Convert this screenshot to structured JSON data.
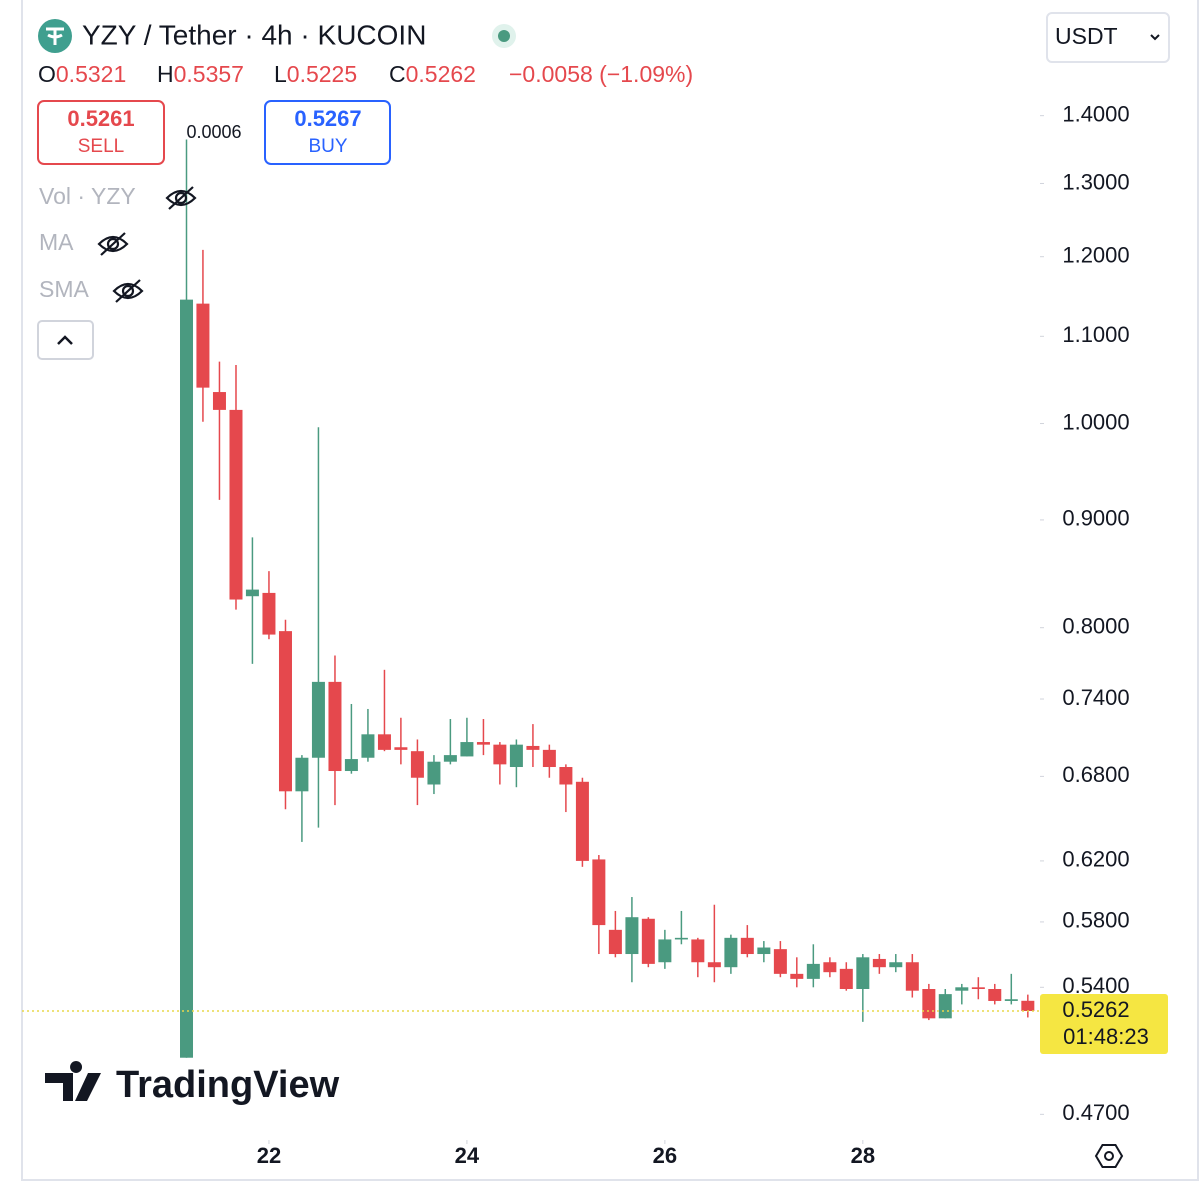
{
  "header": {
    "title": "YZY / Tether · 4h · KUCOIN",
    "ohlc": [
      {
        "label": "O",
        "value": "0.5321"
      },
      {
        "label": "H",
        "value": "0.5357"
      },
      {
        "label": "L",
        "value": "0.5225"
      },
      {
        "label": "C",
        "value": "0.5262"
      }
    ],
    "change": "−0.0058 (−1.09%)",
    "currency": "USDT"
  },
  "trade": {
    "sell": {
      "price": "0.5261",
      "label": "SELL"
    },
    "buy": {
      "price": "0.5267",
      "label": "BUY"
    },
    "spread": "0.0006"
  },
  "indicators": [
    "Vol · YZY",
    "MA",
    "SMA"
  ],
  "watermark": "TradingView",
  "chart_data": {
    "type": "candlestick",
    "log_scale": true,
    "up_color": "#4a9a80",
    "down_color": "#e5484d",
    "x": [
      21.167,
      21.333,
      21.5,
      21.667,
      21.833,
      22,
      22.167,
      22.333,
      22.5,
      22.667,
      22.833,
      23,
      23.167,
      23.333,
      23.5,
      23.667,
      23.833,
      24,
      24.167,
      24.333,
      24.5,
      24.667,
      24.833,
      25,
      25.167,
      25.333,
      25.5,
      25.667,
      25.833,
      26,
      26.167,
      26.333,
      26.5,
      26.667,
      26.833,
      27,
      27.167,
      27.333,
      27.5,
      27.667,
      27.833,
      28,
      28.167,
      28.333,
      28.5,
      28.667,
      28.833,
      29,
      29.167,
      29.333,
      29.5,
      29.667
    ],
    "open": [
      0.5,
      1.14,
      1.035,
      1.015,
      0.828,
      0.831,
      0.797,
      0.669,
      0.694,
      0.754,
      0.684,
      0.694,
      0.712,
      0.702,
      0.699,
      0.674,
      0.691,
      0.695,
      0.706,
      0.704,
      0.687,
      0.703,
      0.7,
      0.687,
      0.676,
      0.621,
      0.575,
      0.56,
      0.582,
      0.555,
      0.569,
      0.569,
      0.555,
      0.552,
      0.57,
      0.56,
      0.563,
      0.548,
      0.545,
      0.555,
      0.551,
      0.539,
      0.557,
      0.552,
      0.555,
      0.539,
      0.522,
      0.538,
      0.54,
      0.539,
      0.532,
      0.5321
    ],
    "high": [
      1.364,
      1.209,
      1.07,
      1.066,
      0.883,
      0.851,
      0.807,
      0.696,
      0.996,
      0.776,
      0.736,
      0.732,
      0.764,
      0.725,
      0.708,
      0.696,
      0.724,
      0.725,
      0.724,
      0.706,
      0.708,
      0.72,
      0.704,
      0.689,
      0.679,
      0.624,
      0.587,
      0.596,
      0.583,
      0.575,
      0.587,
      0.57,
      0.591,
      0.572,
      0.578,
      0.568,
      0.568,
      0.558,
      0.566,
      0.558,
      0.555,
      0.56,
      0.56,
      0.56,
      0.56,
      0.542,
      0.539,
      0.542,
      0.546,
      0.542,
      0.548,
      0.5357
    ],
    "low": [
      0.5,
      1.002,
      0.92,
      0.816,
      0.769,
      0.79,
      0.656,
      0.633,
      0.643,
      0.659,
      0.682,
      0.691,
      0.699,
      0.689,
      0.659,
      0.667,
      0.689,
      0.695,
      0.696,
      0.674,
      0.672,
      0.687,
      0.679,
      0.654,
      0.616,
      0.56,
      0.558,
      0.543,
      0.552,
      0.551,
      0.566,
      0.546,
      0.543,
      0.548,
      0.558,
      0.555,
      0.546,
      0.54,
      0.54,
      0.546,
      0.538,
      0.52,
      0.548,
      0.549,
      0.534,
      0.521,
      0.522,
      0.53,
      0.533,
      0.53,
      0.53,
      0.5225
    ],
    "close": [
      1.145,
      1.04,
      1.015,
      0.825,
      0.834,
      0.794,
      0.669,
      0.694,
      0.754,
      0.684,
      0.693,
      0.712,
      0.7,
      0.7,
      0.679,
      0.691,
      0.696,
      0.706,
      0.704,
      0.689,
      0.704,
      0.7,
      0.687,
      0.674,
      0.62,
      0.578,
      0.56,
      0.583,
      0.554,
      0.569,
      0.57,
      0.555,
      0.552,
      0.57,
      0.56,
      0.564,
      0.548,
      0.545,
      0.554,
      0.549,
      0.539,
      0.558,
      0.552,
      0.555,
      0.538,
      0.522,
      0.536,
      0.54,
      0.539,
      0.532,
      0.533,
      0.5262
    ],
    "xlim": [
      19.505,
      29.79
    ],
    "xticks": [
      22,
      24,
      26,
      28
    ],
    "ylim": [
      0.457,
      1.58
    ],
    "yticks": [
      {
        "value": 1.4,
        "label": "1.4000"
      },
      {
        "value": 1.3,
        "label": "1.3000"
      },
      {
        "value": 1.2,
        "label": "1.2000"
      },
      {
        "value": 1.1,
        "label": "1.1000"
      },
      {
        "value": 1.0,
        "label": "1.0000"
      },
      {
        "value": 0.9,
        "label": "0.9000"
      },
      {
        "value": 0.8,
        "label": "0.8000"
      },
      {
        "value": 0.74,
        "label": "0.7400"
      },
      {
        "value": 0.68,
        "label": "0.6800"
      },
      {
        "value": 0.62,
        "label": "0.6200"
      },
      {
        "value": 0.58,
        "label": "0.5800"
      },
      {
        "value": 0.54,
        "label": "0.5400"
      },
      {
        "value": 0.47,
        "label": "0.4700"
      }
    ],
    "last_price": 0.5262,
    "countdown": "01:48:23",
    "last_price_color": "#f5e642"
  }
}
